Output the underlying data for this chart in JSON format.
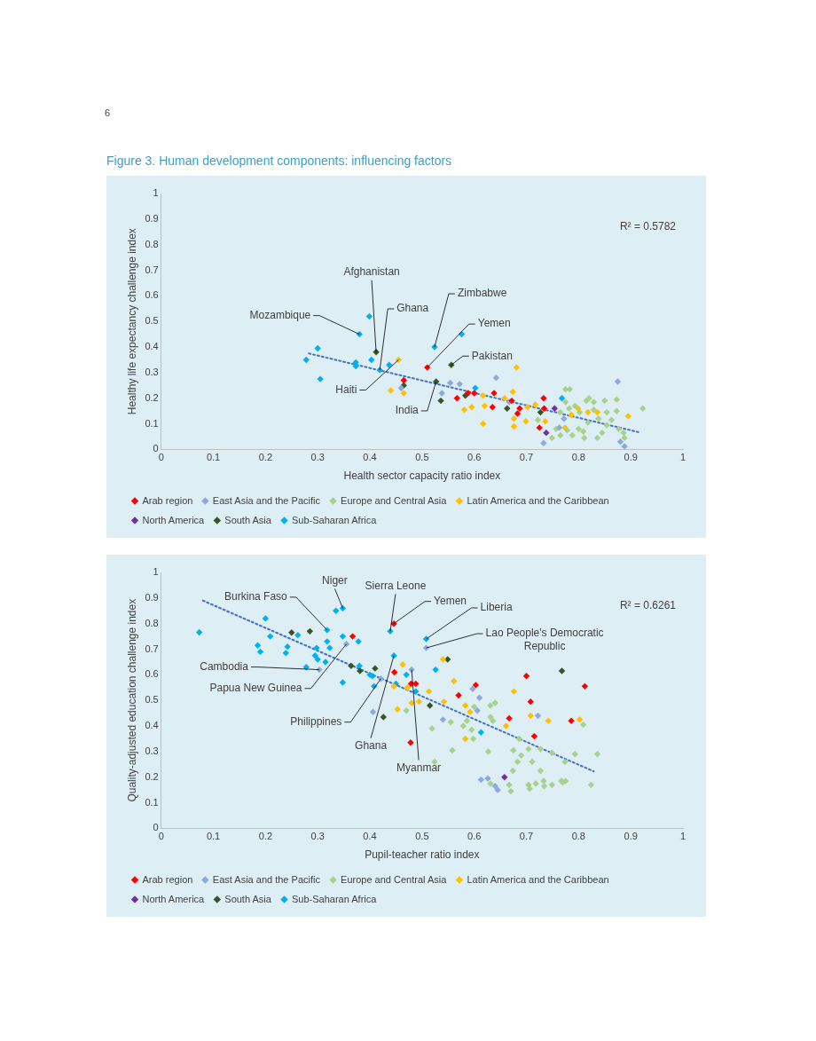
{
  "chart_data": [
    {
      "type": "scatter",
      "title": "Figure 3. Human development components: influencing factors",
      "xlabel": "Health sector capacity ratio index",
      "ylabel": "Healthy life expectancy challenge index",
      "xlim": [
        0,
        1
      ],
      "ylim": [
        0,
        1
      ],
      "xticks": [
        0,
        0.1,
        0.2,
        0.3,
        0.4,
        0.5,
        0.6,
        0.7,
        0.8,
        0.9,
        1
      ],
      "yticks": [
        0,
        0.1,
        0.2,
        0.3,
        0.4,
        0.5,
        0.6,
        0.7,
        0.8,
        0.9,
        1
      ],
      "grid": false,
      "legend": "bottom",
      "marker": "diamond",
      "annotations": [
        "6",
        "R² = 0.5782",
        {
          "text": "Mozambique",
          "x": 0.38,
          "y": 0.45
        },
        {
          "text": "Afghanistan",
          "x": 0.412,
          "y": 0.38
        },
        {
          "text": "Ghana",
          "x": 0.419,
          "y": 0.31
        },
        {
          "text": "Zimbabwe",
          "x": 0.524,
          "y": 0.4
        },
        {
          "text": "Yemen",
          "x": 0.51,
          "y": 0.32
        },
        {
          "text": "Pakistan",
          "x": 0.556,
          "y": 0.33
        },
        {
          "text": "Haiti",
          "x": 0.455,
          "y": 0.35
        },
        {
          "text": "India",
          "x": 0.527,
          "y": 0.265
        }
      ],
      "series": [
        {
          "name": "Arab region",
          "color": "#ff0000",
          "x": [
            0.51,
            0.465,
            0.567,
            0.588,
            0.6,
            0.638,
            0.635,
            0.672,
            0.687,
            0.683,
            0.733,
            0.734,
            0.725
          ],
          "values": [
            0.32,
            0.27,
            0.2,
            0.22,
            0.22,
            0.22,
            0.165,
            0.19,
            0.16,
            0.14,
            0.2,
            0.16,
            0.085
          ]
        },
        {
          "name": "East Asia and the Pacific",
          "color": "#8eaadb",
          "x": [
            0.46,
            0.538,
            0.554,
            0.572,
            0.642,
            0.667,
            0.772,
            0.763,
            0.875,
            0.733,
            0.88,
            0.888
          ],
          "values": [
            0.24,
            0.22,
            0.26,
            0.255,
            0.28,
            0.185,
            0.12,
            0.085,
            0.265,
            0.025,
            0.03,
            0.012
          ]
        },
        {
          "name": "Europe and Central Asia",
          "color": "#a9d18e",
          "x": [
            0.775,
            0.783,
            0.775,
            0.782,
            0.765,
            0.749,
            0.765,
            0.778,
            0.788,
            0.8,
            0.809,
            0.811,
            0.815,
            0.82,
            0.829,
            0.829,
            0.838,
            0.836,
            0.845,
            0.85,
            0.854,
            0.863,
            0.873,
            0.873,
            0.877,
            0.886,
            0.888,
            0.923,
            0.793,
            0.802,
            0.722,
            0.757,
            0.818,
            0.854
          ],
          "values": [
            0.235,
            0.235,
            0.185,
            0.16,
            0.145,
            0.045,
            0.055,
            0.075,
            0.055,
            0.08,
            0.07,
            0.045,
            0.19,
            0.2,
            0.185,
            0.155,
            0.12,
            0.045,
            0.065,
            0.19,
            0.145,
            0.115,
            0.195,
            0.15,
            0.08,
            0.065,
            0.045,
            0.16,
            0.17,
            0.145,
            0.115,
            0.08,
            0.105,
            0.095
          ]
        },
        {
          "name": "Latin America and the Caribbean",
          "color": "#ffc000",
          "x": [
            0.455,
            0.44,
            0.465,
            0.681,
            0.581,
            0.595,
            0.617,
            0.62,
            0.617,
            0.658,
            0.674,
            0.676,
            0.676,
            0.699,
            0.702,
            0.717,
            0.736,
            0.774,
            0.799,
            0.818,
            0.836,
            0.786,
            0.895
          ],
          "values": [
            0.35,
            0.23,
            0.22,
            0.32,
            0.155,
            0.165,
            0.21,
            0.17,
            0.1,
            0.2,
            0.225,
            0.12,
            0.09,
            0.11,
            0.165,
            0.175,
            0.11,
            0.085,
            0.16,
            0.145,
            0.145,
            0.135,
            0.13
          ]
        },
        {
          "name": "North America",
          "color": "#7030a0",
          "x": [
            0.754,
            0.738
          ],
          "values": [
            0.16,
            0.065
          ]
        },
        {
          "name": "South Asia",
          "color": "#375623",
          "x": [
            0.412,
            0.465,
            0.556,
            0.527,
            0.536,
            0.583,
            0.663,
            0.727
          ],
          "values": [
            0.38,
            0.25,
            0.33,
            0.265,
            0.19,
            0.21,
            0.16,
            0.145
          ]
        },
        {
          "name": "Sub-Saharan Africa",
          "color": "#00b0f0",
          "x": [
            0.399,
            0.38,
            0.3,
            0.278,
            0.373,
            0.373,
            0.403,
            0.419,
            0.437,
            0.305,
            0.524,
            0.576,
            0.602,
            0.768
          ],
          "values": [
            0.52,
            0.45,
            0.395,
            0.35,
            0.34,
            0.325,
            0.35,
            0.31,
            0.33,
            0.275,
            0.4,
            0.45,
            0.24,
            0.2
          ]
        },
        {
          "type": "line",
          "color": "#4472c4",
          "line_style": "dotted",
          "marker": "none",
          "x": [
            0.283,
            0.918
          ],
          "values": [
            0.375,
            0.066
          ]
        }
      ]
    },
    {
      "type": "scatter",
      "xlabel": "Pupil-teacher ratio index",
      "ylabel": "Quality-adjusted education challenge index",
      "xlim": [
        0,
        1
      ],
      "ylim": [
        0,
        1
      ],
      "xticks": [
        0,
        0.1,
        0.2,
        0.3,
        0.4,
        0.5,
        0.6,
        0.7,
        0.8,
        0.9,
        1
      ],
      "yticks": [
        0,
        0.1,
        0.2,
        0.3,
        0.4,
        0.5,
        0.6,
        0.7,
        0.8,
        0.9,
        1
      ],
      "grid": false,
      "legend": "bottom",
      "marker": "diamond",
      "annotations": [
        "R² = 0.6261",
        {
          "text": "Niger",
          "x": 0.348,
          "y": 0.86
        },
        {
          "text": "Sierra Leone",
          "x": 0.439,
          "y": 0.77
        },
        {
          "text": "Burkina Faso",
          "x": 0.318,
          "y": 0.775
        },
        {
          "text": "Yemen",
          "x": 0.446,
          "y": 0.8
        },
        {
          "text": "Liberia",
          "x": 0.508,
          "y": 0.74
        },
        {
          "text": "Lao People's Democratic Republic",
          "x": 0.508,
          "y": 0.705
        },
        {
          "text": "Cambodia",
          "x": 0.303,
          "y": 0.62
        },
        {
          "text": "Papua New Guinea",
          "x": 0.355,
          "y": 0.72
        },
        {
          "text": "Philippines",
          "x": 0.421,
          "y": 0.585
        },
        {
          "text": "Ghana",
          "x": 0.446,
          "y": 0.675
        },
        {
          "text": "Myanmar",
          "x": 0.48,
          "y": 0.62
        }
      ],
      "series": [
        {
          "name": "Arab region",
          "color": "#ff0000",
          "x": [
            0.446,
            0.367,
            0.447,
            0.479,
            0.488,
            0.478,
            0.603,
            0.57,
            0.7,
            0.708,
            0.667,
            0.715,
            0.786,
            0.812
          ],
          "values": [
            0.8,
            0.75,
            0.61,
            0.565,
            0.565,
            0.335,
            0.56,
            0.52,
            0.595,
            0.495,
            0.43,
            0.36,
            0.42,
            0.555
          ]
        },
        {
          "name": "East Asia and the Pacific",
          "color": "#8eaadb",
          "x": [
            0.355,
            0.303,
            0.421,
            0.406,
            0.48,
            0.508,
            0.597,
            0.61,
            0.606,
            0.54,
            0.722,
            0.613,
            0.626,
            0.645,
            0.64
          ],
          "values": [
            0.72,
            0.62,
            0.585,
            0.455,
            0.62,
            0.705,
            0.545,
            0.51,
            0.46,
            0.425,
            0.44,
            0.19,
            0.195,
            0.15,
            0.165
          ]
        },
        {
          "name": "Europe and Central Asia",
          "color": "#a9d18e",
          "x": [
            0.47,
            0.519,
            0.555,
            0.558,
            0.524,
            0.579,
            0.586,
            0.595,
            0.598,
            0.6,
            0.631,
            0.64,
            0.631,
            0.636,
            0.627,
            0.675,
            0.686,
            0.69,
            0.704,
            0.711,
            0.727,
            0.749,
            0.727,
            0.674,
            0.683,
            0.667,
            0.67,
            0.631,
            0.704,
            0.706,
            0.718,
            0.733,
            0.734,
            0.749,
            0.767,
            0.775,
            0.77,
            0.774,
            0.793,
            0.809,
            0.824,
            0.836
          ],
          "values": [
            0.46,
            0.39,
            0.415,
            0.305,
            0.26,
            0.4,
            0.42,
            0.385,
            0.35,
            0.475,
            0.48,
            0.49,
            0.435,
            0.42,
            0.3,
            0.305,
            0.35,
            0.285,
            0.31,
            0.26,
            0.31,
            0.295,
            0.225,
            0.225,
            0.26,
            0.17,
            0.145,
            0.175,
            0.17,
            0.155,
            0.175,
            0.185,
            0.165,
            0.17,
            0.185,
            0.185,
            0.18,
            0.26,
            0.29,
            0.405,
            0.17,
            0.29
          ]
        },
        {
          "name": "Latin America and the Caribbean",
          "color": "#ffc000",
          "x": [
            0.463,
            0.446,
            0.472,
            0.453,
            0.48,
            0.494,
            0.513,
            0.54,
            0.561,
            0.542,
            0.583,
            0.592,
            0.583,
            0.661,
            0.676,
            0.708,
            0.742,
            0.802
          ],
          "values": [
            0.64,
            0.555,
            0.55,
            0.465,
            0.49,
            0.495,
            0.535,
            0.66,
            0.575,
            0.495,
            0.48,
            0.455,
            0.35,
            0.4,
            0.535,
            0.44,
            0.42,
            0.425
          ]
        },
        {
          "name": "North America",
          "color": "#7030a0",
          "x": [
            0.658
          ],
          "values": [
            0.2
          ]
        },
        {
          "name": "South Asia",
          "color": "#375623",
          "x": [
            0.25,
            0.285,
            0.364,
            0.381,
            0.41,
            0.426,
            0.515,
            0.549,
            0.768
          ],
          "values": [
            0.765,
            0.77,
            0.635,
            0.615,
            0.625,
            0.435,
            0.48,
            0.66,
            0.615
          ]
        },
        {
          "name": "Sub-Saharan Africa",
          "color": "#00b0f0",
          "x": [
            0.073,
            0.2,
            0.209,
            0.185,
            0.19,
            0.242,
            0.239,
            0.262,
            0.298,
            0.295,
            0.3,
            0.315,
            0.278,
            0.318,
            0.318,
            0.323,
            0.335,
            0.348,
            0.348,
            0.378,
            0.348,
            0.38,
            0.4,
            0.408,
            0.405,
            0.439,
            0.446,
            0.45,
            0.47,
            0.488,
            0.508,
            0.526,
            0.613
          ],
          "values": [
            0.766,
            0.82,
            0.75,
            0.715,
            0.69,
            0.71,
            0.685,
            0.755,
            0.705,
            0.675,
            0.66,
            0.65,
            0.63,
            0.775,
            0.73,
            0.705,
            0.85,
            0.86,
            0.75,
            0.73,
            0.57,
            0.635,
            0.6,
            0.555,
            0.595,
            0.77,
            0.675,
            0.565,
            0.6,
            0.535,
            0.74,
            0.62,
            0.375
          ]
        },
        {
          "type": "line",
          "color": "#4472c4",
          "line_style": "dotted",
          "marker": "none",
          "x": [
            0.08,
            0.829
          ],
          "values": [
            0.89,
            0.223
          ]
        }
      ]
    }
  ]
}
